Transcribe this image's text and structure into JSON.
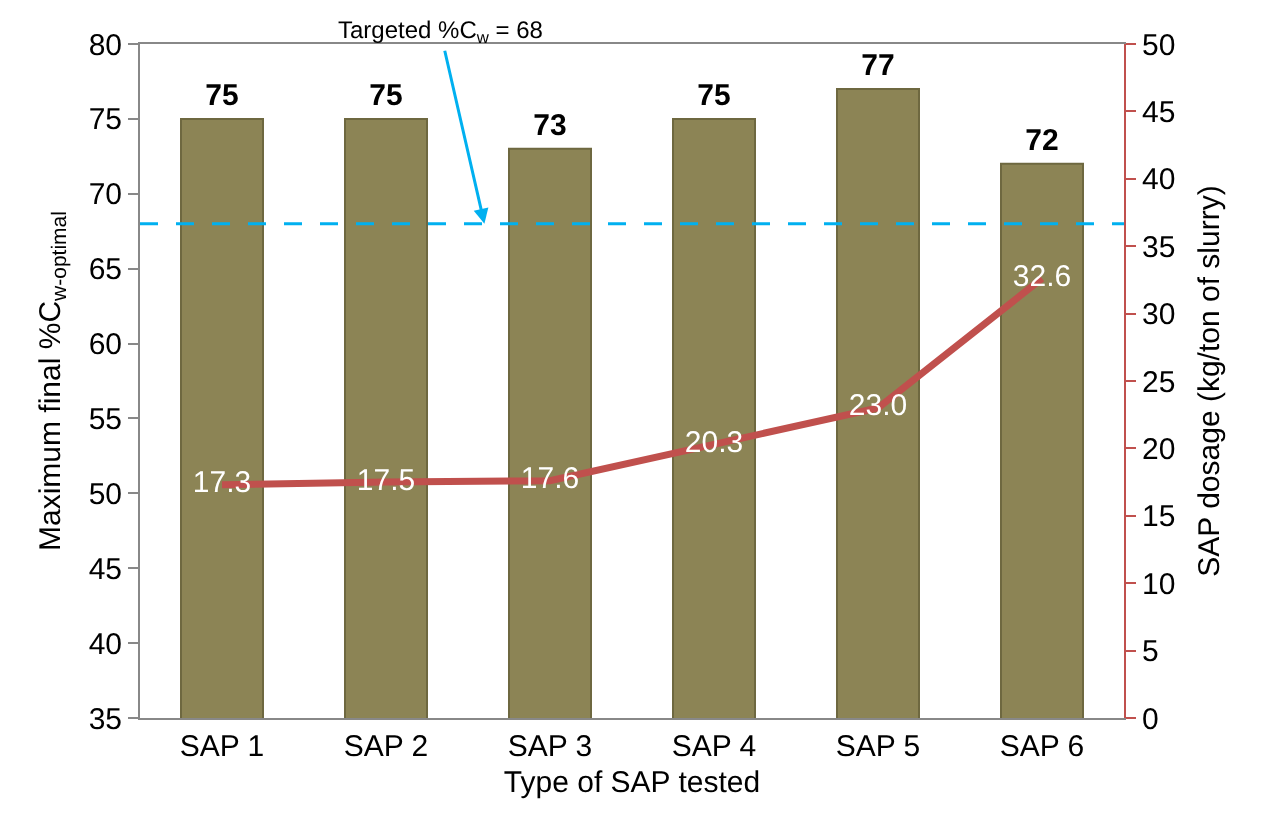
{
  "chart_data": {
    "type": "bar",
    "xlabel": "Type of SAP tested",
    "ylabel": "Maximum final %C$_{w-optimal}$",
    "y2label": "SAP dosage (kg/ton of slurry)",
    "categories": [
      "SAP 1",
      "SAP 2",
      "SAP 3",
      "SAP 4",
      "SAP 5",
      "SAP 6"
    ],
    "series": [
      {
        "color": "#8c8455",
        "values": [
          75,
          75,
          73,
          75,
          77,
          72
        ],
        "value_labels": [
          "75",
          "75",
          "73",
          "75",
          "77",
          "72"
        ]
      },
      {
        "type": "line",
        "axis": "y2",
        "color": "#c0504d",
        "values": [
          17.3,
          17.5,
          17.6,
          20.3,
          23.0,
          32.6
        ],
        "value_labels": [
          "17.3",
          "17.5",
          "17.6",
          "20.3",
          "23.0",
          "32.6"
        ]
      }
    ],
    "ylim": [
      35,
      80
    ],
    "yticks": [
      35,
      40,
      45,
      50,
      55,
      60,
      65,
      70,
      75,
      80
    ],
    "y2lim": [
      0,
      50
    ],
    "y2ticks": [
      0,
      5,
      10,
      15,
      20,
      25,
      30,
      35,
      40,
      45,
      50
    ],
    "ref_lines": [
      {
        "axis": "y",
        "value": 68,
        "label": "Targeted %C$_{w}$ = 68",
        "color": "#00b0f0",
        "line_style": "dashed"
      }
    ],
    "grid": false,
    "marker": "none",
    "line_style": "solid"
  }
}
